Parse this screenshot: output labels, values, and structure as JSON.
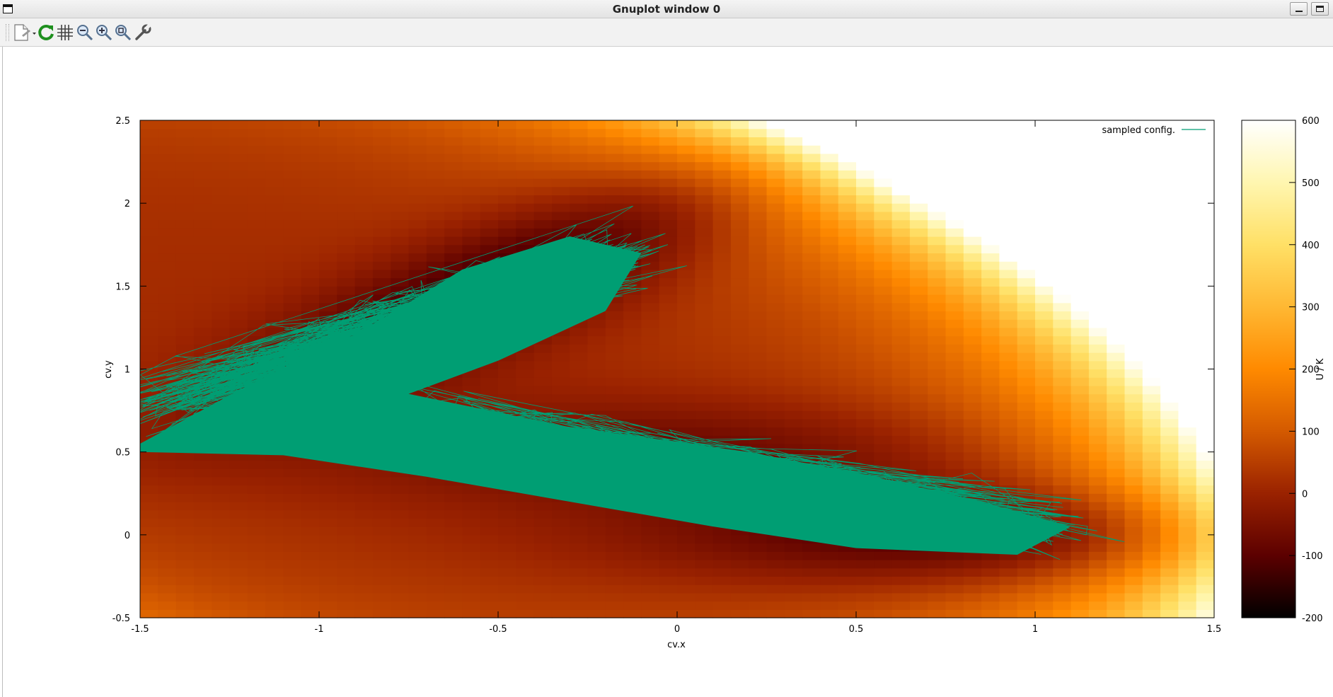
{
  "window": {
    "title": "Gnuplot window 0"
  },
  "toolbar": {
    "tools": [
      {
        "name": "export",
        "icon": "export-document-icon"
      },
      {
        "name": "replot",
        "icon": "refresh-icon"
      },
      {
        "name": "grid",
        "icon": "grid-icon"
      },
      {
        "name": "previous-zoom",
        "icon": "zoom-out-icon"
      },
      {
        "name": "next-zoom",
        "icon": "zoom-in-icon"
      },
      {
        "name": "autoscale",
        "icon": "zoom-fit-icon"
      },
      {
        "name": "settings",
        "icon": "wrench-icon"
      }
    ]
  },
  "chart_data": {
    "type": "heatmap",
    "title": "",
    "xlabel": "cv.x",
    "ylabel": "cv.y",
    "xlim": [
      -1.5,
      1.5
    ],
    "ylim": [
      -0.5,
      2.5
    ],
    "x_ticks": [
      "-1.5",
      "-1",
      "-0.5",
      "0",
      "0.5",
      "1",
      "1.5"
    ],
    "y_ticks": [
      "-0.5",
      "0",
      "0.5",
      "1",
      "1.5",
      "2",
      "2.5"
    ],
    "colorbar": {
      "label": "U / K",
      "range": [
        -200,
        600
      ],
      "ticks": [
        "-200",
        "-100",
        "0",
        "100",
        "200",
        "300",
        "400",
        "500",
        "600"
      ],
      "palette": [
        "#000000",
        "#5c0000",
        "#9a2200",
        "#d45a00",
        "#ff8a00",
        "#ffb833",
        "#ffe066",
        "#fff6b0",
        "#ffffff"
      ]
    },
    "series": [
      {
        "name": "sampled config.",
        "type": "line",
        "color": "#009e73",
        "description_regions": [
          {
            "x_range": [
              -1.5,
              0.05
            ],
            "y_range": [
              0.4,
              2.0
            ]
          },
          {
            "x_range": [
              -0.6,
              1.2
            ],
            "y_range": [
              -0.3,
              0.85
            ]
          }
        ]
      }
    ],
    "legend_position": "top-right",
    "grid": false
  }
}
